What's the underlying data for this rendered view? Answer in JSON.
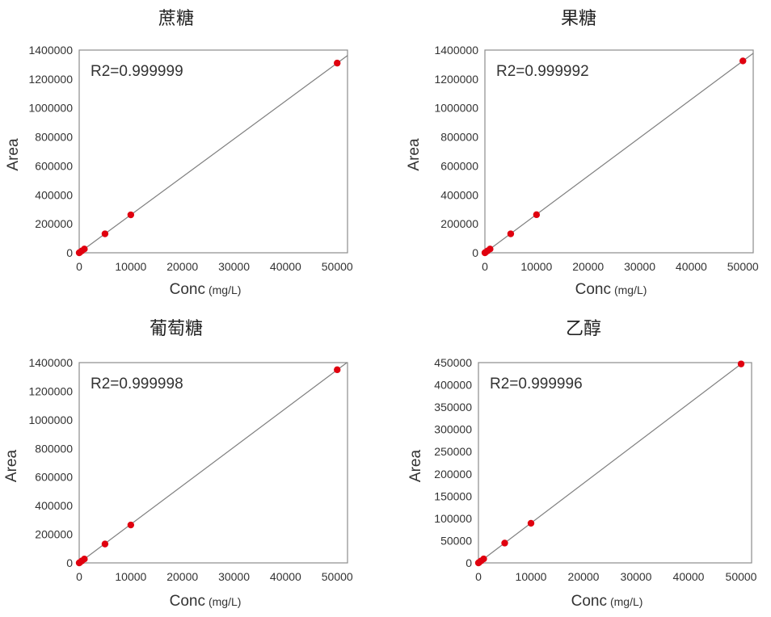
{
  "colors": {
    "point": "#e0000f",
    "line": "#7f7f7f",
    "frame": "#8c8c8c"
  },
  "chart_data": [
    {
      "type": "scatter",
      "title": "蔗糖",
      "xlabel": "Conc",
      "xunit": "(mg/L)",
      "ylabel": "Area",
      "annotation": "R2=0.999999",
      "xlim": [
        0,
        52000
      ],
      "ylim": [
        0,
        1400000
      ],
      "xticks": [
        "0",
        "10000",
        "20000",
        "30000",
        "40000",
        "50000"
      ],
      "yticks": [
        "0",
        "200000",
        "400000",
        "600000",
        "800000",
        "1000000",
        "1200000",
        "1400000"
      ],
      "x": [
        0,
        100,
        500,
        1000,
        5000,
        10000,
        50000
      ],
      "y": [
        0,
        2600,
        13000,
        26000,
        131000,
        262000,
        1310000
      ],
      "trendline": true
    },
    {
      "type": "scatter",
      "title": "果糖",
      "xlabel": "Conc",
      "xunit": "(mg/L)",
      "ylabel": "Area",
      "annotation": "R2=0.999992",
      "xlim": [
        0,
        52000
      ],
      "ylim": [
        0,
        1400000
      ],
      "xticks": [
        "0",
        "10000",
        "20000",
        "30000",
        "40000",
        "50000"
      ],
      "yticks": [
        "0",
        "200000",
        "400000",
        "600000",
        "800000",
        "1000000",
        "1200000",
        "1400000"
      ],
      "x": [
        0,
        100,
        500,
        1000,
        5000,
        10000,
        50000
      ],
      "y": [
        0,
        2600,
        13000,
        26000,
        131000,
        263000,
        1325000
      ],
      "trendline": true
    },
    {
      "type": "scatter",
      "title": "葡萄糖",
      "xlabel": "Conc",
      "xunit": "(mg/L)",
      "ylabel": "Area",
      "annotation": "R2=0.999998",
      "xlim": [
        0,
        52000
      ],
      "ylim": [
        0,
        1400000
      ],
      "xticks": [
        "0",
        "10000",
        "20000",
        "30000",
        "40000",
        "50000"
      ],
      "yticks": [
        "0",
        "200000",
        "400000",
        "600000",
        "800000",
        "1000000",
        "1200000",
        "1400000"
      ],
      "x": [
        0,
        100,
        500,
        1000,
        5000,
        10000,
        50000
      ],
      "y": [
        0,
        2700,
        13500,
        27000,
        132000,
        265000,
        1350000
      ],
      "trendline": true
    },
    {
      "type": "scatter",
      "title": "乙醇",
      "xlabel": "Conc",
      "xunit": "(mg/L)",
      "ylabel": "Area",
      "annotation": "R2=0.999996",
      "xlim": [
        0,
        52000
      ],
      "ylim": [
        0,
        450000
      ],
      "xticks": [
        "0",
        "10000",
        "20000",
        "30000",
        "40000",
        "50000"
      ],
      "yticks": [
        "0",
        "50000",
        "100000",
        "150000",
        "200000",
        "250000",
        "300000",
        "350000",
        "400000",
        "450000"
      ],
      "x": [
        0,
        100,
        500,
        1000,
        5000,
        10000,
        50000
      ],
      "y": [
        0,
        900,
        4500,
        9000,
        44500,
        89000,
        447000
      ],
      "trendline": true
    }
  ]
}
